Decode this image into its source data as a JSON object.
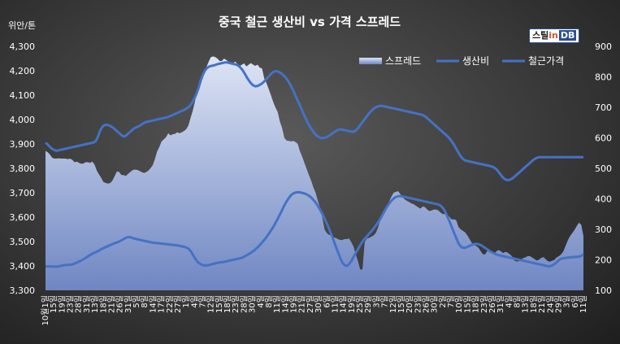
{
  "brand": {
    "name_ko": "스틸",
    "name_in": "in",
    "name_db": "DB"
  },
  "colors": {
    "spread_fill_top": "#dde4f4",
    "spread_fill_bottom": "#6f86c2",
    "line": "#4472c4"
  },
  "chart_data": {
    "type": "line",
    "title": "중국 철근 생산비 vs 가격 스프레드",
    "left_axis_label": "위안/톤",
    "left_ylim": [
      3300,
      4300
    ],
    "left_ticks": [
      "3,300",
      "3,400",
      "3,500",
      "3,600",
      "3,700",
      "3,800",
      "3,900",
      "4,000",
      "4,100",
      "4,200",
      "4,300"
    ],
    "right_ylim": [
      100,
      900
    ],
    "right_ticks": [
      "100",
      "200",
      "300",
      "400",
      "500",
      "600",
      "700",
      "800",
      "900"
    ],
    "legend_position": "top-right",
    "grid": false,
    "x_tick_labels": [
      "10월1일",
      "15일",
      "19일",
      "23일",
      "28일",
      "31일",
      "13일",
      "18일",
      "21일",
      "26일",
      "31일",
      "5일",
      "8일",
      "14일",
      "17일",
      "22일",
      "27일",
      "1일",
      "4일",
      "7일",
      "12일",
      "15일",
      "18일",
      "23일",
      "28일",
      "30일",
      "4일",
      "8일",
      "11일",
      "14일",
      "19일",
      "21일",
      "27일",
      "30일",
      "6일",
      "11일",
      "14일",
      "19일",
      "25일",
      "29일",
      "3일",
      "7일",
      "12일",
      "15일",
      "20일",
      "23일",
      "26일",
      "30일",
      "2일",
      "7일",
      "10일",
      "15일",
      "18일",
      "23일",
      "26일",
      "31일",
      "4일",
      "8일",
      "13일",
      "18일",
      "21일",
      "24일",
      "29일",
      "3일",
      "6일",
      "11일"
    ],
    "series": [
      {
        "name": "스프레드",
        "axis": "right",
        "style": "area",
        "values": [
          557,
          553,
          545,
          535,
          532,
          532,
          533,
          532,
          532,
          532,
          530,
          532,
          528,
          520,
          522,
          518,
          515,
          516,
          520,
          520,
          518,
          522,
          512,
          492,
          480,
          468,
          455,
          452,
          450,
          452,
          460,
          475,
          490,
          488,
          478,
          478,
          475,
          482,
          488,
          494,
          496,
          495,
          492,
          488,
          485,
          487,
          492,
          500,
          510,
          530,
          555,
          570,
          588,
          595,
          602,
          615,
          608,
          612,
          613,
          618,
          615,
          618,
          622,
          628,
          640,
          665,
          690,
          720,
          755,
          788,
          805,
          815,
          830,
          848,
          864,
          867,
          865,
          860,
          852,
          852,
          860,
          855,
          850,
          847,
          845,
          850,
          842,
          835,
          840,
          844,
          834,
          840,
          845,
          840,
          836,
          840,
          830,
          828,
          795,
          780,
          760,
          740,
          718,
          700,
          685,
          654,
          632,
          600,
          591,
          590,
          588,
          590,
          586,
          580,
          556,
          538,
          518,
          498,
          478,
          460,
          438,
          420,
          394,
          370,
          340,
          300,
          288,
          282,
          280,
          273,
          272,
          268,
          265,
          265,
          268,
          268,
          270,
          258,
          243,
          218,
          195,
          168,
          169,
          258,
          270,
          272,
          276,
          280,
          288,
          306,
          330,
          345,
          362,
          378,
          392,
          408,
          420,
          423,
          425,
          415,
          404,
          398,
          393,
          389,
          385,
          382,
          377,
          372,
          368,
          375,
          373,
          365,
          360,
          362,
          365,
          365,
          362,
          355,
          350,
          350,
          348,
          340,
          332,
          333,
          330,
          308,
          300,
          295,
          290,
          280,
          268,
          255,
          250,
          245,
          240,
          228,
          218,
          218,
          230,
          225,
          222,
          220,
          228,
          232,
          228,
          222,
          226,
          224,
          218,
          212,
          198,
          195,
          195,
          198,
          206,
          208,
          212,
          212,
          208,
          203,
          198,
          200,
          206,
          209,
          203,
          196,
          194,
          197,
          200,
          208,
          212,
          218,
          228,
          246,
          264,
          278,
          288,
          298,
          311,
          322,
          315,
          278
        ]
      },
      {
        "name": "생산비",
        "axis": "left",
        "style": "line",
        "values": [
          3398,
          3398,
          3398,
          3397,
          3397,
          3397,
          3398,
          3400,
          3402,
          3403,
          3404,
          3405,
          3405,
          3408,
          3412,
          3416,
          3420,
          3425,
          3430,
          3436,
          3442,
          3447,
          3452,
          3456,
          3460,
          3465,
          3470,
          3474,
          3478,
          3482,
          3486,
          3490,
          3494,
          3497,
          3500,
          3505,
          3510,
          3515,
          3518,
          3518,
          3515,
          3512,
          3510,
          3508,
          3506,
          3504,
          3502,
          3500,
          3498,
          3496,
          3495,
          3494,
          3493,
          3492,
          3491,
          3490,
          3489,
          3488,
          3487,
          3486,
          3485,
          3484,
          3482,
          3480,
          3478,
          3475,
          3470,
          3460,
          3445,
          3430,
          3418,
          3410,
          3405,
          3402,
          3402,
          3403,
          3405,
          3408,
          3410,
          3412,
          3414,
          3415,
          3416,
          3418,
          3420,
          3422,
          3424,
          3426,
          3428,
          3430,
          3432,
          3435,
          3440,
          3445,
          3450,
          3456,
          3462,
          3470,
          3478,
          3488,
          3498,
          3508,
          3520,
          3532,
          3546,
          3560,
          3576,
          3592,
          3610,
          3628,
          3646,
          3662,
          3676,
          3688,
          3696,
          3700,
          3702,
          3702,
          3700,
          3698,
          3695,
          3690,
          3684,
          3676,
          3666,
          3654,
          3640,
          3624,
          3606,
          3588,
          3568,
          3546,
          3524,
          3500,
          3476,
          3452,
          3430,
          3412,
          3402,
          3400,
          3408,
          3420,
          3436,
          3452,
          3468,
          3484,
          3498,
          3510,
          3520,
          3530,
          3540,
          3550,
          3562,
          3574,
          3588,
          3604,
          3620,
          3636,
          3650,
          3662,
          3672,
          3680,
          3684,
          3686,
          3686,
          3684,
          3682,
          3680,
          3678,
          3676,
          3674,
          3672,
          3670,
          3668,
          3666,
          3664,
          3662,
          3660,
          3658,
          3656,
          3654,
          3652,
          3648,
          3640,
          3626,
          3608,
          3588,
          3566,
          3544,
          3522,
          3500,
          3484,
          3476,
          3474,
          3476,
          3480,
          3484,
          3488,
          3490,
          3490,
          3488,
          3484,
          3478,
          3472,
          3466,
          3460,
          3455,
          3450,
          3447,
          3444,
          3442,
          3440,
          3438,
          3436,
          3434,
          3432,
          3430,
          3428,
          3426,
          3424,
          3422,
          3420,
          3418,
          3416,
          3414,
          3412,
          3410,
          3408,
          3406,
          3404,
          3402,
          3400,
          3398,
          3400,
          3404,
          3410,
          3418,
          3426,
          3430,
          3432,
          3433,
          3434,
          3435,
          3436,
          3437,
          3437,
          3438,
          3441,
          3448
        ]
      },
      {
        "name": "철근가격",
        "axis": "left",
        "style": "line",
        "values": [
          3905,
          3898,
          3888,
          3880,
          3875,
          3872,
          3874,
          3876,
          3878,
          3880,
          3882,
          3884,
          3886,
          3888,
          3890,
          3892,
          3894,
          3896,
          3898,
          3900,
          3902,
          3904,
          3906,
          3912,
          3930,
          3955,
          3970,
          3978,
          3978,
          3976,
          3972,
          3966,
          3958,
          3950,
          3942,
          3934,
          3930,
          3936,
          3944,
          3952,
          3960,
          3966,
          3970,
          3974,
          3980,
          3986,
          3990,
          3992,
          3994,
          3996,
          3998,
          4000,
          4002,
          4004,
          4006,
          4008,
          4010,
          4014,
          4018,
          4022,
          4026,
          4030,
          4034,
          4038,
          4042,
          4048,
          4056,
          4068,
          4085,
          4105,
          4130,
          4160,
          4185,
          4202,
          4212,
          4218,
          4220,
          4222,
          4225,
          4228,
          4230,
          4232,
          4234,
          4234,
          4232,
          4230,
          4228,
          4226,
          4222,
          4214,
          4204,
          4190,
          4174,
          4160,
          4148,
          4140,
          4136,
          4138,
          4142,
          4148,
          4156,
          4166,
          4176,
          4186,
          4194,
          4198,
          4198,
          4194,
          4188,
          4180,
          4170,
          4158,
          4142,
          4124,
          4104,
          4084,
          4064,
          4044,
          4024,
          4004,
          3986,
          3970,
          3956,
          3944,
          3934,
          3928,
          3924,
          3924,
          3926,
          3930,
          3936,
          3942,
          3948,
          3954,
          3958,
          3960,
          3958,
          3956,
          3954,
          3952,
          3950,
          3950,
          3956,
          3966,
          3978,
          3990,
          4002,
          4014,
          4026,
          4036,
          4044,
          4050,
          4054,
          4056,
          4056,
          4054,
          4052,
          4050,
          4048,
          4046,
          4044,
          4042,
          4040,
          4038,
          4036,
          4034,
          4032,
          4030,
          4028,
          4026,
          4024,
          4022,
          4020,
          4016,
          4010,
          4002,
          3994,
          3986,
          3978,
          3970,
          3962,
          3954,
          3946,
          3938,
          3930,
          3920,
          3908,
          3894,
          3878,
          3862,
          3848,
          3838,
          3832,
          3830,
          3828,
          3826,
          3824,
          3822,
          3820,
          3818,
          3816,
          3814,
          3812,
          3810,
          3808,
          3804,
          3798,
          3788,
          3776,
          3764,
          3756,
          3752,
          3752,
          3756,
          3762,
          3770,
          3778,
          3786,
          3794,
          3802,
          3810,
          3818,
          3826,
          3834,
          3840,
          3844,
          3846,
          3846,
          3846,
          3846,
          3846,
          3846,
          3846,
          3846,
          3846,
          3846,
          3846,
          3846,
          3846,
          3846,
          3846,
          3846,
          3846,
          3846,
          3846,
          3846,
          3846
        ]
      }
    ]
  }
}
